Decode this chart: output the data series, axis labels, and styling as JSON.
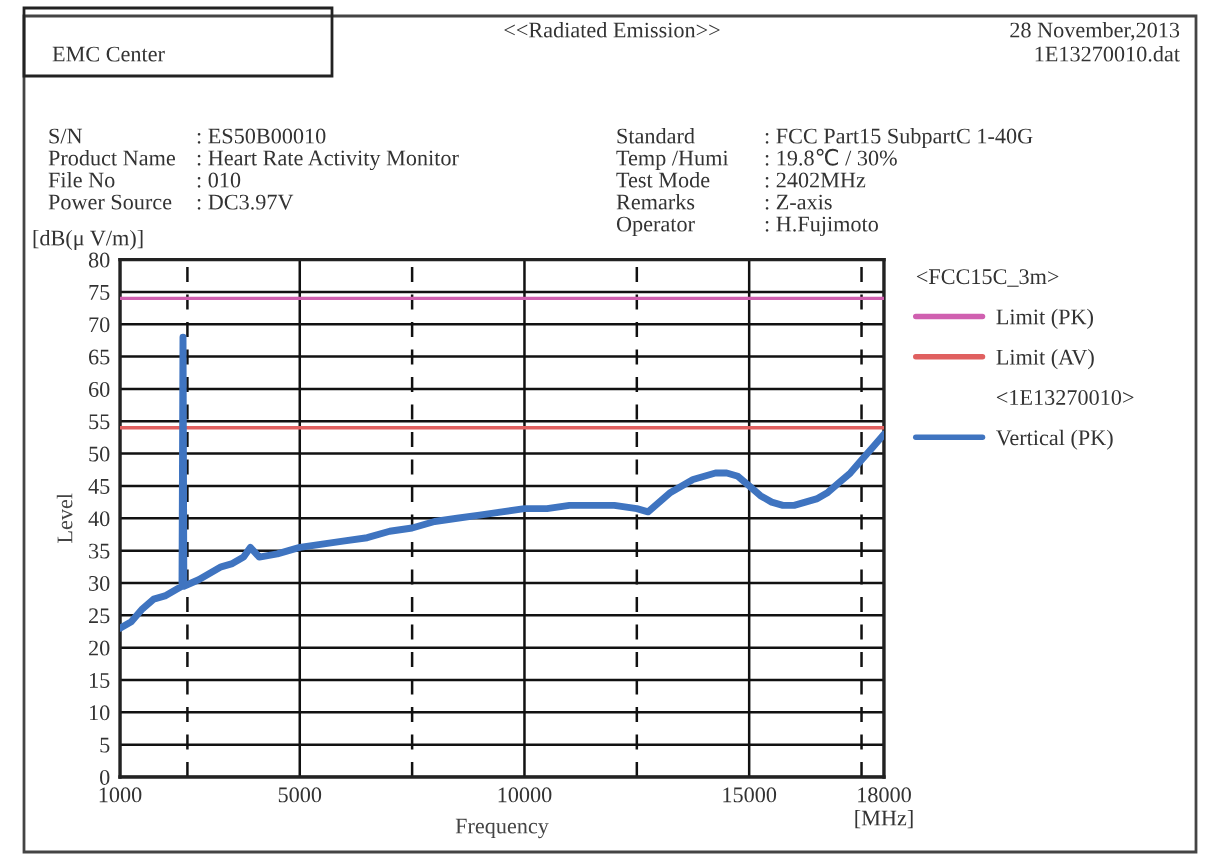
{
  "chart_data": {
    "type": "line",
    "title": "<<Radiated Emission>>",
    "xlabel": "Frequency",
    "ylabel": "Level",
    "legend_title": "<FCC15C_3m>",
    "annotations": [
      "EMC Center",
      "28 November,2013",
      "1E13270010.dat",
      "S/N",
      ": ES50B00010",
      "Product Name",
      ": Heart Rate Activity Monitor",
      "File No",
      ": 010",
      "Power Source",
      ": DC3.97V",
      "Standard",
      ": FCC Part15 SubpartC 1-40G",
      "Temp /Humi",
      ": 19.8℃ / 30%",
      "Test Mode",
      ": 2402MHz",
      "Remarks",
      ": Z-axis",
      "Operator",
      ": H.Fujimoto",
      "[dB(μ V/m)]",
      "[MHz]",
      "<1E13270010>"
    ],
    "xlim": [
      1000,
      18000
    ],
    "xticks": [
      1000,
      {
        "value": 2500,
        "label": null
      },
      5000,
      {
        "value": 7500,
        "label": null
      },
      10000,
      {
        "value": 12500,
        "label": null
      },
      15000,
      {
        "value": 17500,
        "label": null
      },
      18000
    ],
    "ylim": [
      0,
      80
    ],
    "yticks": [
      0,
      5,
      10,
      15,
      20,
      25,
      30,
      35,
      40,
      45,
      50,
      55,
      60,
      65,
      70,
      75,
      80
    ],
    "grid": true,
    "legend": "right",
    "marker": "none",
    "line_style": "solid",
    "ref_lines": [
      {
        "axis": "y",
        "value": 74,
        "label": "Limit (PK)",
        "color": "#d060b0"
      },
      {
        "axis": "y",
        "value": 54,
        "label": "Limit (AV)",
        "color": "#e06060"
      }
    ],
    "series": [
      {
        "name": "Vertical (PK)",
        "color": "#3f74c0",
        "x": [
          1000,
          1250,
          1500,
          1750,
          2000,
          2250,
          2380,
          2402,
          2420,
          2750,
          3000,
          3250,
          3500,
          3750,
          3900,
          4100,
          4500,
          5000,
          5500,
          6000,
          6500,
          7000,
          7500,
          8000,
          8500,
          9000,
          9500,
          10000,
          10500,
          11000,
          11500,
          12000,
          12500,
          12750,
          13000,
          13250,
          13500,
          13750,
          14000,
          14250,
          14500,
          14750,
          15000,
          15250,
          15500,
          15750,
          16000,
          16250,
          16500,
          16750,
          17000,
          17250,
          17500,
          17750,
          18000
        ],
        "values": [
          23,
          24,
          26,
          27.5,
          28,
          29,
          29.5,
          68,
          29.5,
          30.5,
          31.5,
          32.5,
          33,
          34,
          35.5,
          34,
          34.5,
          35.5,
          36,
          36.5,
          37,
          38,
          38.5,
          39.5,
          40,
          40.5,
          41,
          41.5,
          41.5,
          42,
          42,
          42,
          41.5,
          41,
          42.5,
          44,
          45,
          46,
          46.5,
          47,
          47,
          46.5,
          45,
          43.5,
          42.5,
          42,
          42,
          42.5,
          43,
          44,
          45.5,
          47,
          49,
          51,
          53
        ]
      }
    ]
  }
}
